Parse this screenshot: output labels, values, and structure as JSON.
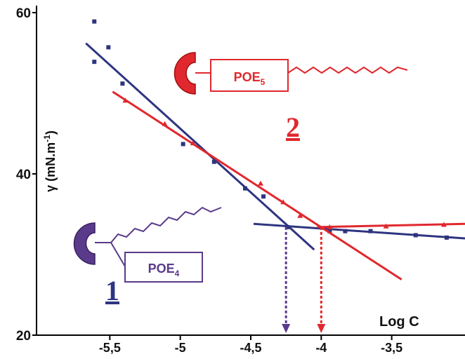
{
  "chart_data": {
    "type": "scatter",
    "x_label": "Log C",
    "y_label": {
      "main": "γ (mN.m",
      "sup": "-1",
      "end": ")"
    },
    "xlim": [
      -6.02,
      -2.98
    ],
    "xticks": [
      {
        "value": -5.5,
        "label": "-5,5"
      },
      -5,
      {
        "value": -4.5,
        "label": "-4,5"
      },
      -4,
      {
        "value": -3.5,
        "label": "-3,5"
      }
    ],
    "ylim": [
      20,
      60
    ],
    "yticks": [
      20,
      40,
      60
    ],
    "series": [
      {
        "label": "1",
        "box": {
          "text": "POE",
          "sub": "4"
        },
        "color": "#2e3580",
        "box_color": "#5a3a8a",
        "marker": "square",
        "x": [
          -5.61,
          -5.61,
          -5.51,
          -5.41,
          -4.98,
          -4.76,
          -4.54,
          -4.41,
          -4.24,
          -3.94,
          -3.83,
          -3.65,
          -3.33,
          -3.11
        ],
        "values": [
          58.9,
          53.9,
          55.7,
          51.2,
          43.7,
          41.5,
          38.2,
          37.2,
          33.4,
          32.9,
          32.9,
          32.9,
          32.4,
          32.1
        ],
        "fits": [
          {
            "x": [
              -5.67,
              -4.05
            ],
            "y": [
              56.2,
              30.6
            ]
          },
          {
            "x": [
              -4.48,
              -2.98
            ],
            "y": [
              33.8,
              32.0
            ]
          }
        ],
        "cmc": {
          "x": -4.25,
          "y": 33.4,
          "color": "#5a3a8a"
        }
      },
      {
        "label": "2",
        "box": {
          "text": "POE",
          "sub": "5"
        },
        "color": "#e0282e",
        "box_color": "#e0282e",
        "marker": "triangle",
        "x": [
          -5.39,
          -5.11,
          -4.91,
          -4.43,
          -4.27,
          -4.15,
          -3.94,
          -3.54,
          -3.13
        ],
        "values": [
          49.1,
          46.2,
          43.8,
          38.8,
          36.5,
          34.8,
          33.4,
          33.5,
          33.7
        ],
        "fits": [
          {
            "x": [
              -5.48,
              -3.43
            ],
            "y": [
              50.2,
              26.9
            ]
          },
          {
            "x": [
              -4.03,
              -2.98
            ],
            "y": [
              33.4,
              33.8
            ]
          }
        ],
        "cmc": {
          "x": -4.0,
          "y": 33.4,
          "color": "#e0282e"
        }
      }
    ]
  }
}
